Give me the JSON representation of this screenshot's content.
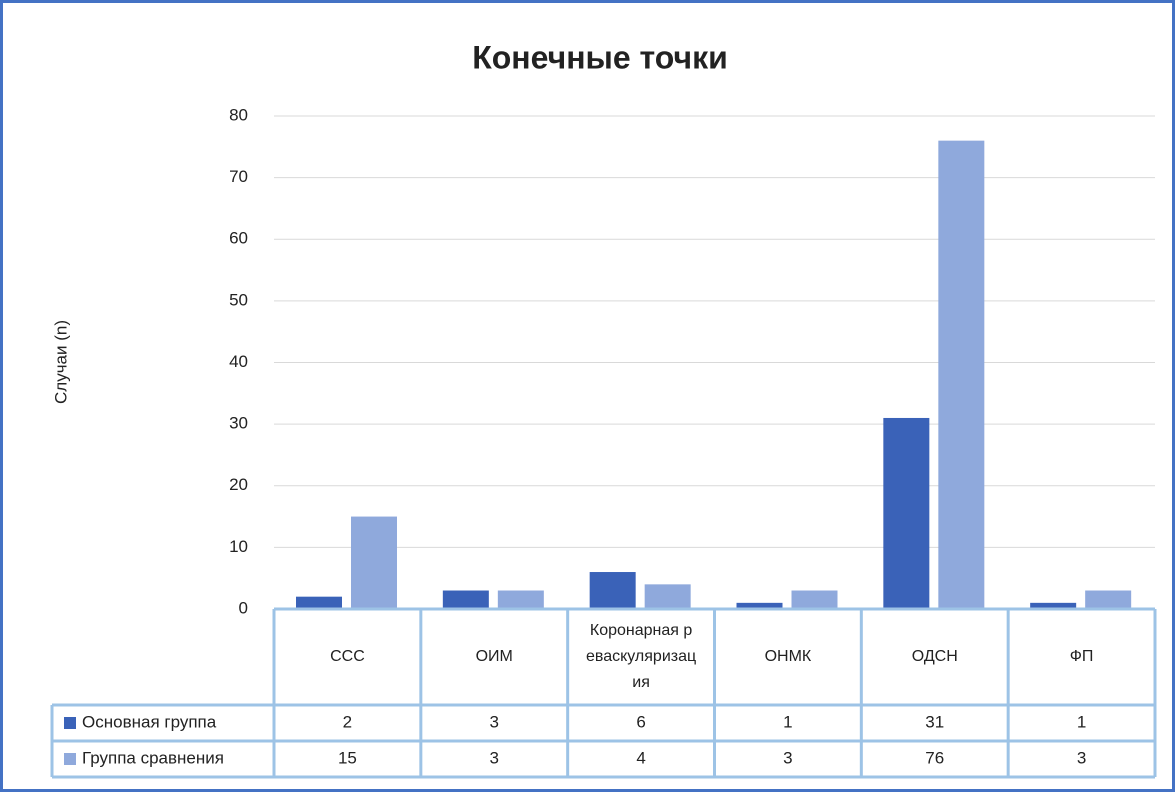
{
  "chart_data": {
    "type": "bar",
    "title": "Конечные точки",
    "y_label": "Случаи (n)",
    "categories": [
      "ССС",
      "ОИМ",
      "Коронарная реваскуляризация",
      "ОНМК",
      "ОДСН",
      "ФП"
    ],
    "series": [
      {
        "name": "Основная группа",
        "color": "#3a62b8",
        "values": [
          2,
          3,
          6,
          1,
          31,
          1
        ]
      },
      {
        "name": "Группа сравнения",
        "color": "#8fa9dc",
        "values": [
          15,
          3,
          4,
          3,
          76,
          3
        ]
      }
    ],
    "ylim": [
      0,
      80
    ],
    "yticks": [
      0,
      10,
      20,
      30,
      40,
      50,
      60,
      70,
      80
    ],
    "grid": true,
    "data_table": true
  }
}
